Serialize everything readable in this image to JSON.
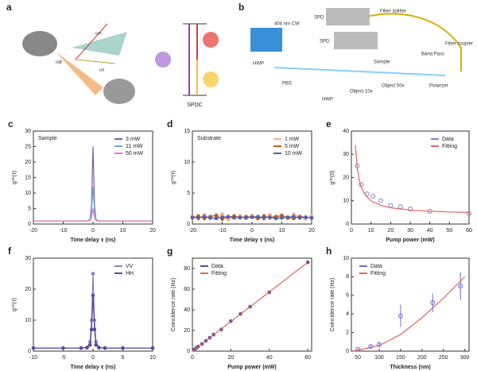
{
  "panel_a": {
    "label": "a",
    "pump": "ωp",
    "signal": "ωs",
    "idler": "ωi",
    "process": "SPDC"
  },
  "panel_b": {
    "label": "b",
    "laser": "404 nm CW",
    "hwp1": "HWP",
    "pbs": "PBS",
    "hwp2": "HWP",
    "obj1": "Object 10x",
    "sample": "Sample",
    "obj2": "Object 50x",
    "bandpass": "Band Pass",
    "polarizer": "Polarizer",
    "coupler": "Fiber coupler",
    "splitter": "Fiber splitter",
    "spd1": "SPD",
    "spd2": "SPD"
  },
  "chart_data": [
    {
      "type": "line",
      "label": "c",
      "title": "Sample",
      "x_label": "Time delay 𝛕 (ns)",
      "y_label": "g⁽²⁾(τ)",
      "xlim": [
        -20,
        20
      ],
      "xticks": [
        -20,
        -10,
        0,
        10,
        20
      ],
      "ylim": [
        0,
        30
      ],
      "yticks": [
        0,
        5,
        10,
        15,
        20,
        25,
        30
      ],
      "legend": "upper right",
      "series": [
        {
          "name": "3 mW",
          "color": "#7b5ea7",
          "line": true,
          "x": [
            -20,
            -15,
            -10,
            -5,
            -2,
            -1,
            -0.5,
            0,
            0.5,
            1,
            2,
            5,
            10,
            15,
            20
          ],
          "values": [
            1,
            1,
            1,
            1,
            1,
            1.5,
            6,
            25,
            6,
            1.5,
            1,
            1,
            1,
            1,
            1
          ]
        },
        {
          "name": "11 mW",
          "color": "#6fa8dc",
          "line": true,
          "x": [
            -20,
            -15,
            -10,
            -5,
            -2,
            -1,
            -0.5,
            0,
            0.5,
            1,
            2,
            5,
            10,
            15,
            20
          ],
          "values": [
            1,
            1,
            1,
            1,
            1,
            1.3,
            4,
            12,
            4,
            1.3,
            1,
            1,
            1,
            1,
            1
          ]
        },
        {
          "name": "50 mW",
          "color": "#e07bb5",
          "line": true,
          "x": [
            -20,
            -15,
            -10,
            -5,
            -2,
            -1,
            -0.5,
            0,
            0.5,
            1,
            2,
            5,
            10,
            15,
            20
          ],
          "values": [
            1,
            1,
            1,
            1,
            1,
            1.1,
            2,
            5,
            2,
            1.1,
            1,
            1,
            1,
            1,
            1
          ]
        }
      ]
    },
    {
      "type": "scatter",
      "label": "d",
      "title": "Substrate",
      "x_label": "Time delay 𝛕 (ns)",
      "y_label": "g⁽²⁾(τ)",
      "xlim": [
        -20,
        20
      ],
      "xticks": [
        -20,
        -10,
        0,
        10,
        20
      ],
      "ylim": [
        0,
        15
      ],
      "yticks": [
        0,
        5,
        10,
        15
      ],
      "legend": "upper right",
      "series": [
        {
          "name": "1 mW",
          "color": "#f4b183",
          "line": true,
          "marker": true,
          "x": [
            -20,
            -18,
            -16,
            -14,
            -12,
            -10,
            -8,
            -6,
            -4,
            -2,
            0,
            2,
            4,
            6,
            8,
            10,
            12,
            14,
            16,
            18,
            20
          ],
          "values": [
            1.2,
            0.8,
            1.5,
            0.9,
            1.1,
            1.6,
            0.7,
            1.0,
            1.3,
            0.9,
            1.4,
            1.1,
            0.8,
            1.5,
            1.0,
            1.2,
            0.9,
            1.6,
            1.1,
            0.8,
            1.3
          ]
        },
        {
          "name": "5 mW",
          "color": "#c55a11",
          "line": true,
          "marker": true,
          "x": [
            -20,
            -18,
            -16,
            -14,
            -12,
            -10,
            -8,
            -6,
            -4,
            -2,
            0,
            2,
            4,
            6,
            8,
            10,
            12,
            14,
            16,
            18,
            20
          ],
          "values": [
            1.0,
            1.3,
            0.9,
            1.2,
            1.4,
            0.8,
            1.1,
            1.3,
            1.0,
            1.2,
            1.1,
            0.9,
            1.3,
            1.0,
            1.2,
            1.4,
            1.0,
            0.9,
            1.2,
            1.1,
            1.0
          ]
        },
        {
          "name": "10 mW",
          "color": "#4a5fc1",
          "line": true,
          "marker": true,
          "x": [
            -20,
            -18,
            -16,
            -14,
            -12,
            -10,
            -8,
            -6,
            -4,
            -2,
            0,
            2,
            4,
            6,
            8,
            10,
            12,
            14,
            16,
            18,
            20
          ],
          "values": [
            1.1,
            1.0,
            1.2,
            1.0,
            0.9,
            1.1,
            1.2,
            1.0,
            1.1,
            1.0,
            1.1,
            1.2,
            1.0,
            1.1,
            0.9,
            1.0,
            1.1,
            1.2,
            1.0,
            1.1,
            1.0
          ]
        }
      ]
    },
    {
      "type": "scatter",
      "label": "e",
      "x_label": "Pump power (mW)",
      "y_label": "g⁽²⁾(0)",
      "xlim": [
        0,
        60
      ],
      "xticks": [
        0,
        10,
        20,
        30,
        40,
        50,
        60
      ],
      "ylim": [
        0,
        40
      ],
      "yticks": [
        0,
        10,
        20,
        30,
        40
      ],
      "legend": "upper right",
      "series": [
        {
          "name": "Data",
          "color": "#8e7cc3",
          "marker": true,
          "open": true,
          "x": [
            3,
            5,
            8,
            11,
            15,
            20,
            25,
            30,
            40,
            60
          ],
          "values": [
            25,
            17,
            13,
            12,
            10,
            8,
            7.5,
            6.5,
            5.5,
            4.5
          ]
        },
        {
          "name": "Fitting",
          "color": "#e06666",
          "line": true,
          "x": [
            2,
            3,
            4,
            5,
            7,
            10,
            15,
            20,
            30,
            40,
            50,
            60
          ],
          "values": [
            34,
            24,
            19,
            16,
            12.6,
            10,
            8,
            7,
            6,
            5.5,
            5.2,
            5
          ]
        }
      ]
    },
    {
      "type": "line",
      "label": "f",
      "x_label": "Time delay 𝛕 (ns)",
      "y_label": "g⁽²⁾(τ)",
      "xlim": [
        -10,
        10
      ],
      "xticks": [
        -10,
        -5,
        0,
        5,
        10
      ],
      "ylim": [
        0,
        30
      ],
      "yticks": [
        0,
        10,
        20,
        30
      ],
      "legend": "upper right",
      "series": [
        {
          "name": "VV",
          "color": "#8e7cc3",
          "line": true,
          "marker": true,
          "x": [
            -10,
            -5,
            -2,
            -1,
            -0.5,
            -0.25,
            0,
            0.25,
            0.5,
            1,
            2,
            5,
            10
          ],
          "values": [
            1,
            1,
            1,
            1.2,
            3,
            10,
            25,
            10,
            3,
            1.2,
            1,
            1,
            1
          ]
        },
        {
          "name": "HH",
          "color": "#5b4b9a",
          "line": true,
          "marker": true,
          "x": [
            -10,
            -5,
            -2,
            -1,
            -0.5,
            -0.25,
            0,
            0.25,
            0.5,
            1,
            2,
            5,
            10
          ],
          "values": [
            1,
            1,
            1,
            1.1,
            2,
            7,
            18,
            7,
            2,
            1.1,
            1,
            1,
            1
          ]
        }
      ]
    },
    {
      "type": "scatter",
      "label": "g",
      "x_label": "Pump power (mW)",
      "y_label": "Coincidence rate (Hz)",
      "xlim": [
        0,
        62
      ],
      "xticks": [
        0,
        20,
        40,
        60
      ],
      "ylim": [
        0,
        90
      ],
      "yticks": [
        0,
        20,
        40,
        60,
        80
      ],
      "legend": "upper left",
      "series": [
        {
          "name": "Data",
          "color": "#5b4b9a",
          "marker": true,
          "x": [
            1,
            2,
            3,
            5,
            7,
            9,
            11,
            15,
            20,
            25,
            30,
            40,
            60
          ],
          "values": [
            1.5,
            3,
            4.5,
            7,
            10,
            13,
            16,
            21,
            29,
            36,
            43,
            57,
            86
          ]
        },
        {
          "name": "Fitting",
          "color": "#e06666",
          "line": true,
          "x": [
            0,
            60
          ],
          "values": [
            0,
            86
          ]
        }
      ]
    },
    {
      "type": "scatter",
      "label": "h",
      "x_label": "Thickness (nm)",
      "y_label": "Coincidence rate (Hz)",
      "xlim": [
        35,
        310
      ],
      "xticks": [
        50,
        100,
        150,
        200,
        250,
        300
      ],
      "ylim": [
        0,
        10
      ],
      "yticks": [
        0,
        2,
        4,
        6,
        8,
        10
      ],
      "legend": "upper left",
      "series": [
        {
          "name": "Data",
          "color": "#6d6dd6",
          "marker": true,
          "open": true,
          "x": [
            50,
            80,
            100,
            150,
            225,
            290
          ],
          "values": [
            0.2,
            0.5,
            0.7,
            3.8,
            5.2,
            7.0
          ],
          "errors": [
            0.1,
            0.2,
            0.3,
            1.2,
            1.0,
            1.5
          ]
        },
        {
          "name": "Fitting",
          "color": "#e06666",
          "line": true,
          "x": [
            40,
            100,
            150,
            200,
            250,
            300
          ],
          "values": [
            0,
            0.6,
            1.8,
            3.6,
            5.7,
            8.0
          ]
        }
      ]
    }
  ]
}
